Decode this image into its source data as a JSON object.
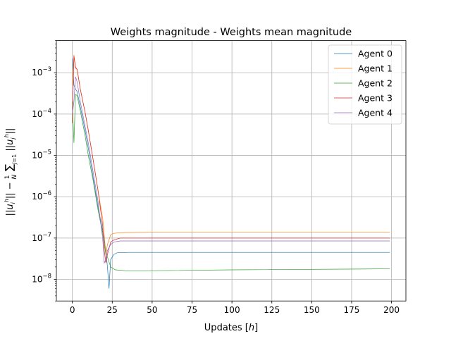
{
  "chart_data": {
    "type": "line",
    "title": "Weights magnitude - Weights mean magnitude",
    "xlabel": "Updates [h]",
    "ylabel": "||u_i^h|| - (1/N) Σ_{j=1} ||u_j^h||",
    "xlim": [
      -10,
      209
    ],
    "ylim": [
      3e-09,
      0.006
    ],
    "yscale": "log",
    "grid": true,
    "legend_position": "top-right",
    "x_ticks": [
      0,
      25,
      50,
      75,
      100,
      125,
      150,
      175,
      200
    ],
    "x_tick_labels": [
      "0",
      "25",
      "50",
      "75",
      "100",
      "125",
      "150",
      "175",
      "200"
    ],
    "y_ticks": [
      1e-08,
      1e-07,
      1e-06,
      1e-05,
      0.0001,
      0.001
    ],
    "y_tick_labels": [
      "10^-8",
      "10^-7",
      "10^-6",
      "10^-5",
      "10^-4",
      "10^-3"
    ],
    "series": [
      {
        "name": "Agent 0",
        "color": "#1f77b4",
        "points": [
          [
            0,
            0.0022
          ],
          [
            1,
            0.0005
          ],
          [
            2,
            0.0004
          ],
          [
            3,
            0.00035
          ],
          [
            5,
            0.00015
          ],
          [
            8,
            4e-05
          ],
          [
            10,
            1.5e-05
          ],
          [
            13,
            3e-06
          ],
          [
            16,
            6e-07
          ],
          [
            19,
            1.5e-07
          ],
          [
            21,
            5e-08
          ],
          [
            22,
            2e-08
          ],
          [
            23,
            6e-09
          ],
          [
            24,
            3e-08
          ],
          [
            26,
            4e-08
          ],
          [
            28,
            4.4e-08
          ],
          [
            35,
            4.5e-08
          ],
          [
            100,
            4.5e-08
          ],
          [
            199,
            4.5e-08
          ]
        ]
      },
      {
        "name": "Agent 1",
        "color": "#ff7f0e",
        "points": [
          [
            0,
            0.0005
          ],
          [
            1,
            0.0027
          ],
          [
            2,
            0.0014
          ],
          [
            3,
            0.0012
          ],
          [
            5,
            0.0004
          ],
          [
            8,
            0.00011
          ],
          [
            10,
            4e-05
          ],
          [
            13,
            8e-06
          ],
          [
            16,
            1.5e-06
          ],
          [
            19,
            3e-07
          ],
          [
            20,
            1.2e-07
          ],
          [
            21,
            4e-08
          ],
          [
            22,
            7e-08
          ],
          [
            24,
            1.2e-07
          ],
          [
            26,
            1.3e-07
          ],
          [
            30,
            1.35e-07
          ],
          [
            60,
            1.4e-07
          ],
          [
            199,
            1.4e-07
          ]
        ]
      },
      {
        "name": "Agent 2",
        "color": "#2ca02c",
        "points": [
          [
            0,
            0.0002
          ],
          [
            1,
            2e-05
          ],
          [
            2,
            0.0003
          ],
          [
            3,
            0.00028
          ],
          [
            5,
            0.00012
          ],
          [
            8,
            3e-05
          ],
          [
            10,
            1e-05
          ],
          [
            13,
            2.5e-06
          ],
          [
            16,
            5e-07
          ],
          [
            19,
            1.3e-07
          ],
          [
            20,
            7e-08
          ],
          [
            21,
            4e-08
          ],
          [
            22,
            3.5e-08
          ],
          [
            24,
            2e-08
          ],
          [
            27,
            1.7e-08
          ],
          [
            35,
            1.6e-08
          ],
          [
            100,
            1.7e-08
          ],
          [
            199,
            1.8e-08
          ]
        ]
      },
      {
        "name": "Agent 3",
        "color": "#d62728",
        "points": [
          [
            0,
            6e-05
          ],
          [
            1,
            0.0025
          ],
          [
            2,
            0.0013
          ],
          [
            3,
            0.0012
          ],
          [
            5,
            0.0004
          ],
          [
            8,
            0.00011
          ],
          [
            10,
            4e-05
          ],
          [
            13,
            8e-06
          ],
          [
            16,
            1.5e-06
          ],
          [
            19,
            2e-07
          ],
          [
            20,
            5e-08
          ],
          [
            21,
            2.5e-08
          ],
          [
            22,
            4e-08
          ],
          [
            24,
            8e-08
          ],
          [
            26,
            9e-08
          ],
          [
            30,
            1e-07
          ],
          [
            199,
            1e-07
          ]
        ]
      },
      {
        "name": "Agent 4",
        "color": "#9467bd",
        "points": [
          [
            0,
            0.0001
          ],
          [
            1,
            0.0002
          ],
          [
            2,
            0.0008
          ],
          [
            3,
            0.0006
          ],
          [
            5,
            0.0002
          ],
          [
            8,
            5e-05
          ],
          [
            10,
            2e-05
          ],
          [
            13,
            4e-06
          ],
          [
            16,
            8e-07
          ],
          [
            19,
            1e-07
          ],
          [
            20,
            2.5e-08
          ],
          [
            21,
            3e-08
          ],
          [
            22,
            5e-08
          ],
          [
            24,
            7e-08
          ],
          [
            26,
            8e-08
          ],
          [
            30,
            8.5e-08
          ],
          [
            199,
            8.5e-08
          ]
        ]
      }
    ]
  }
}
